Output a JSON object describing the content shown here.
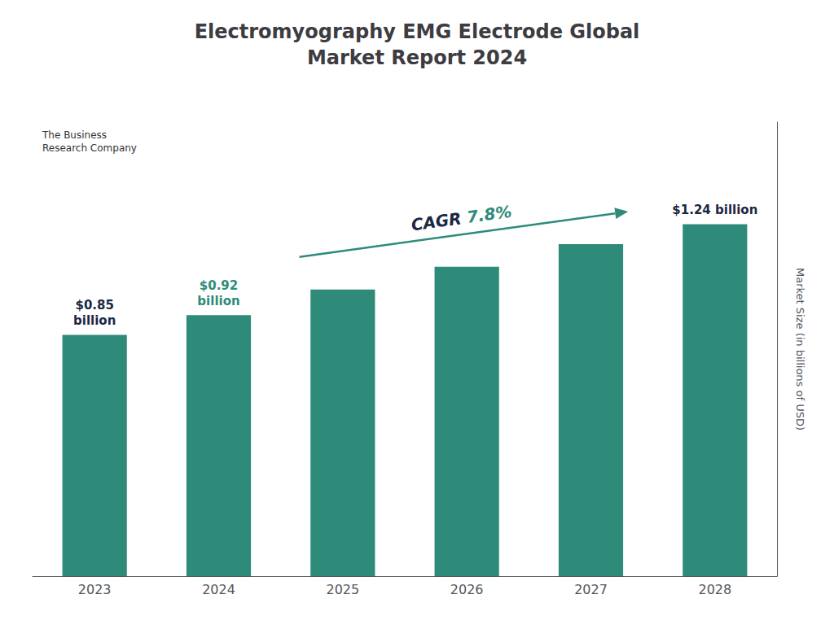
{
  "chart_data": {
    "type": "bar",
    "title": "Electromyography EMG Electrode Global\nMarket Report 2024",
    "categories": [
      "2023",
      "2024",
      "2025",
      "2026",
      "2027",
      "2028"
    ],
    "values": [
      0.85,
      0.92,
      1.01,
      1.09,
      1.17,
      1.24
    ],
    "color": "#2e8b7a",
    "ylabel": "Market Size (in billions of USD)",
    "ylim": [
      0,
      1.6
    ],
    "yticks": [],
    "grid": false,
    "tick_labels": "x",
    "annotations": [
      {
        "text": "$0.85\nbillion",
        "category": "2023",
        "color": "#1a2744"
      },
      {
        "text": "$0.92\nbillion",
        "category": "2024",
        "color": "#2e8b7a"
      },
      {
        "text": "$1.24 billion",
        "category": "2028",
        "color": "#1a2744"
      },
      {
        "parts": [
          {
            "text": "CAGR ",
            "color": "#1a2744"
          },
          {
            "text": "7.8%",
            "color": "#2e8b7a"
          }
        ],
        "color": "#2e8b7a"
      },
      {
        "text": "The Business\nResearch Company",
        "color": "#333333"
      }
    ]
  }
}
